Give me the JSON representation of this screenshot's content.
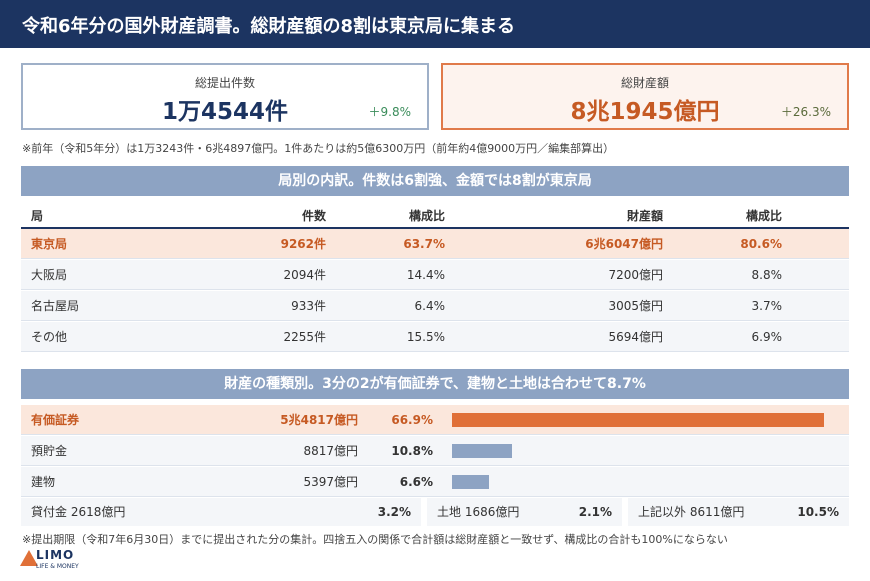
{
  "header": {
    "title": "令和6年分の国外財産調書。総財産額の8割は東京局に集まる"
  },
  "kpis": [
    {
      "label": "総提出件数",
      "value": "1万4544件",
      "change": "＋9.8%"
    },
    {
      "label": "総財産額",
      "value": "8兆1945億円",
      "change": "＋26.3%"
    }
  ],
  "note_prev_year": "※前年（令和5年分）は1万3243件・6兆4897億円。1件あたりは約5億6300万円（前年約4億9000万円／編集部算出）",
  "bureau_section": {
    "title": "局別の内訳。件数は6割強、金額では8割が東京局",
    "headers": {
      "bureau": "局",
      "count": "件数",
      "count_share": "構成比",
      "amount": "財産額",
      "amount_share": "構成比"
    },
    "rows": [
      {
        "bureau": "東京局",
        "count": "9262件",
        "count_share": "63.7%",
        "amount": "6兆6047億円",
        "amount_share": "80.6%"
      },
      {
        "bureau": "大阪局",
        "count": "2094件",
        "count_share": "14.4%",
        "amount": "7200億円",
        "amount_share": "8.8%"
      },
      {
        "bureau": "名古屋局",
        "count": "933件",
        "count_share": "6.4%",
        "amount": "3005億円",
        "amount_share": "3.7%"
      },
      {
        "bureau": "その他",
        "count": "2255件",
        "count_share": "15.5%",
        "amount": "5694億円",
        "amount_share": "6.9%"
      }
    ]
  },
  "asset_section": {
    "title": "財産の種類別。3分の2が有価証券で、建物と土地は合わせて8.7%",
    "rows": [
      {
        "type": "有価証券",
        "amount": "5兆4817億円",
        "share": "66.9%",
        "share_value": 66.9
      },
      {
        "type": "預貯金",
        "amount": "8817億円",
        "share": "10.8%",
        "share_value": 10.8
      },
      {
        "type": "建物",
        "amount": "5397億円",
        "share": "6.6%",
        "share_value": 6.6
      }
    ],
    "others": [
      {
        "label": "貸付金 2618億円",
        "share": "3.2%"
      },
      {
        "label": "土地 1686億円",
        "share": "2.1%"
      },
      {
        "label": "上記以外 8611億円",
        "share": "10.5%"
      }
    ]
  },
  "note_footer": "※提出期限（令和7年6月30日）までに提出された分の集計。四捨五入の関係で合計額は総財産額と一致せず、構成比の合計も100%にならない",
  "logo": {
    "name": "LIMO",
    "tagline": "LIFE & MONEY"
  },
  "colors": {
    "navy": "#1c3461",
    "accent": "#e07038",
    "bar": "#8da3c3",
    "highlight": "#fbe7dc"
  }
}
